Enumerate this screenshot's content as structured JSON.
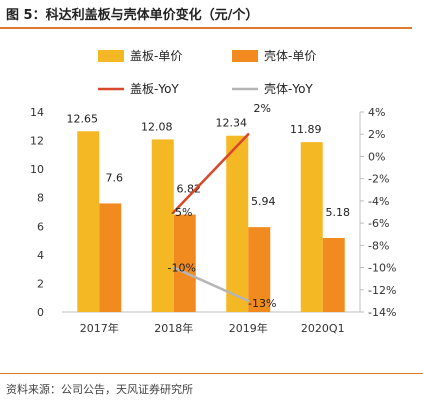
{
  "header": {
    "title": "图 5：科达利盖板与壳体单价变化（元/个）"
  },
  "footer": {
    "source": "资料来源：公司公告，天风证券研究所"
  },
  "colors": {
    "accent": "#e07a2e"
  },
  "chart_data": {
    "type": "bar",
    "categories": [
      "2017年",
      "2018年",
      "2019年",
      "2020Q1"
    ],
    "series": [
      {
        "name": "盖板-单价",
        "type": "bar",
        "axis": "left",
        "color": "#f5b825",
        "values": [
          12.65,
          12.08,
          12.34,
          11.89
        ],
        "labels": [
          "12.65",
          "12.08",
          "12.34",
          "11.89"
        ]
      },
      {
        "name": "壳体-单价",
        "type": "bar",
        "axis": "left",
        "color": "#f28b1f",
        "values": [
          7.6,
          6.82,
          5.94,
          5.18
        ],
        "labels": [
          "7.6",
          "6.82",
          "5.94",
          "5.18"
        ]
      },
      {
        "name": "盖板-YoY",
        "type": "line",
        "axis": "right",
        "color": "#d9472b",
        "values": [
          null,
          -5,
          2,
          null
        ],
        "labels": [
          "",
          "-5%",
          "2%",
          ""
        ]
      },
      {
        "name": "壳体-YoY",
        "type": "line",
        "axis": "right",
        "color": "#b5b5b5",
        "values": [
          null,
          -10,
          -13,
          null
        ],
        "labels": [
          "",
          "-10%",
          "-13%",
          ""
        ]
      }
    ],
    "y_left": {
      "min": 0,
      "max": 14,
      "ticks": [
        "0",
        "2",
        "4",
        "6",
        "8",
        "10",
        "12",
        "14"
      ]
    },
    "y_right": {
      "min": -14,
      "max": 4,
      "ticks": [
        "4%",
        "2%",
        "0%",
        "-2%",
        "-4%",
        "-6%",
        "-8%",
        "-10%",
        "-12%",
        "-14%"
      ]
    },
    "legend": {
      "position": "top"
    },
    "grid": false
  }
}
